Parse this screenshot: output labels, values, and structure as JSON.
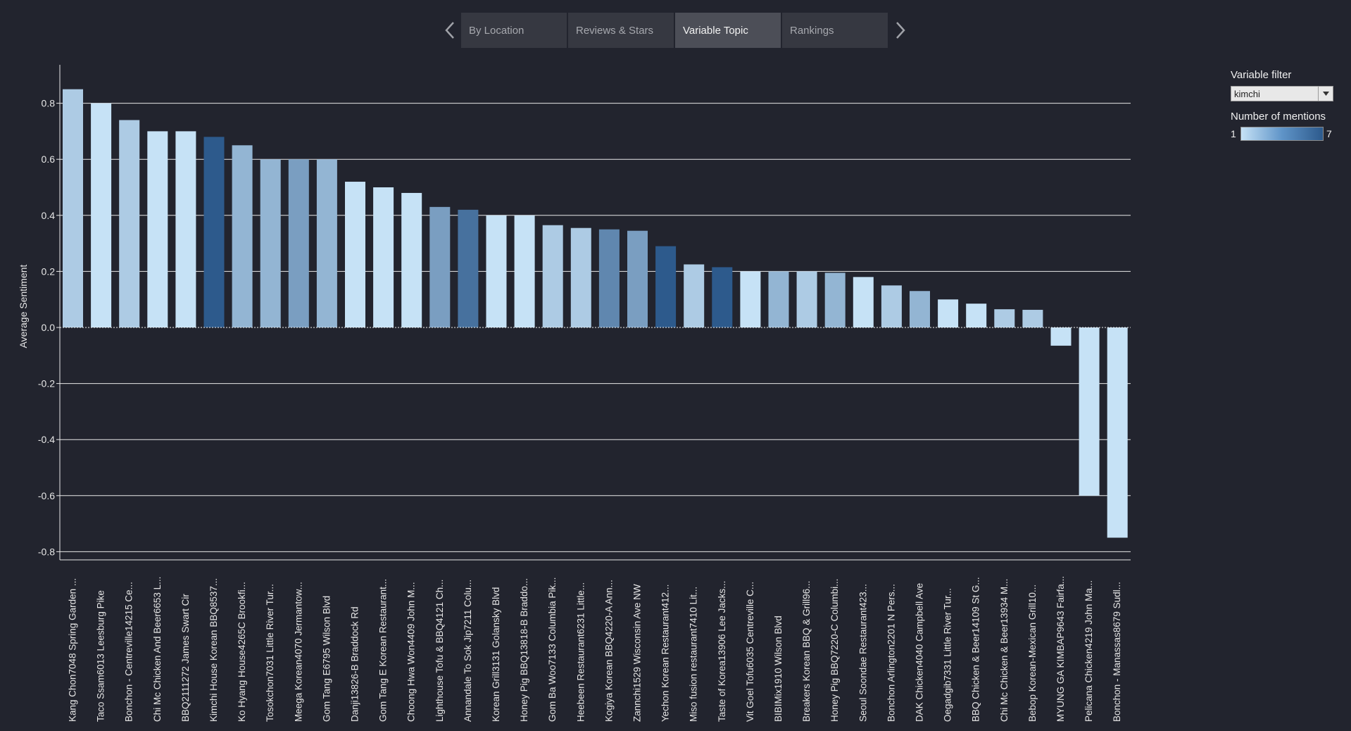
{
  "tabs": {
    "prev_label": "previous",
    "next_label": "next",
    "items": [
      {
        "label": "By Location",
        "active": false
      },
      {
        "label": "Reviews & Stars",
        "active": false
      },
      {
        "label": "Variable Topic",
        "active": true
      },
      {
        "label": "Rankings",
        "active": false
      }
    ]
  },
  "filters": {
    "variable_filter_label": "Variable filter",
    "variable_filter_value": "kimchi",
    "legend_title": "Number of mentions",
    "legend_min": "1",
    "legend_max": "7"
  },
  "colors": {
    "background": "#22242e",
    "gridline": "#e8e8e8",
    "scale_low": "#c6e2f6",
    "scale_high": "#2d5a8c"
  },
  "chart_data": {
    "type": "bar",
    "ylabel": "Average Sentiment",
    "ylim": [
      -0.85,
      0.9
    ],
    "yticks": [
      "0.8",
      "0.6",
      "0.4",
      "0.2",
      "0.0",
      "-0.2",
      "-0.4",
      "-0.6",
      "-0.8"
    ],
    "grid": true,
    "color_encoding": "Number of mentions",
    "categories": [
      "Kang Chon7048 Spring Garden ...",
      "Taco Ssam6013 Leesburg Pike",
      "Bonchon - Centreville14215 Ce...",
      "Chi Mc Chicken And Beer6653 L...",
      "BBQ2111272 James Swart Cir",
      "Kimchi House Korean BBQ8537...",
      "Ko Hyang House4265C Brookfi...",
      "Tosokchon7031 Little River Tur...",
      "Meega Korean4070 Jermantow...",
      "Gom Tang E6795 Wilson Blvd",
      "Danji13826-B Braddock Rd",
      "Gom Tang E Korean Restaurant...",
      "Choong Hwa Won4409 John M...",
      "Lighthouse Tofu & BBQ4121 Ch...",
      "Annandale To Sok Jip7211 Colu...",
      "Korean Grill3131 Golansky Blvd",
      "Honey Pig BBQ13818-B Braddo...",
      "Gom Ba Woo7133 Columbia Pik...",
      "Heebeen Restaurant6231 Little...",
      "Kogiya Korean BBQ4220-A Ann...",
      "Zannchi1529 Wisconsin Ave NW",
      "Yechon Korean Restaurant412...",
      "Miso fusion restaurant7410 Lit...",
      "Taste of Korea13906 Lee Jacks...",
      "Vit Goel Tofu6035 Centreville C...",
      "BIBIMix1910 Wilson Blvd",
      "Breakers Korean BBQ & Grill96...",
      "Honey Pig BBQ7220-C Columbi...",
      "Seoul Soondae Restaurant423...",
      "Bonchon Arlington2201 N Pers...",
      "DAK Chicken4040 Campbell Ave",
      "Oegadgib7331 Little River Tur...",
      "BBQ Chicken & Beer14109 St G...",
      "Chi Mc Chicken & Beer13934 M...",
      "Bebop Korean-Mexican Grill10...",
      "MYUNG GA KIMBAP9643 Fairfa...",
      "Pelicana Chicken4219 John Ma...",
      "Bonchon - Manassas8679 Sudl..."
    ],
    "values": [
      0.85,
      0.8,
      0.74,
      0.7,
      0.7,
      0.68,
      0.65,
      0.6,
      0.6,
      0.6,
      0.52,
      0.5,
      0.48,
      0.43,
      0.42,
      0.4,
      0.4,
      0.365,
      0.355,
      0.35,
      0.345,
      0.29,
      0.225,
      0.215,
      0.2,
      0.2,
      0.2,
      0.195,
      0.18,
      0.15,
      0.13,
      0.1,
      0.085,
      0.065,
      0.063,
      -0.065,
      -0.6,
      -0.75
    ],
    "mentions": [
      2,
      1,
      2,
      1,
      1,
      7,
      3,
      3,
      4,
      3,
      1,
      1,
      1,
      4,
      6,
      1,
      1,
      2,
      2,
      5,
      4,
      7,
      2,
      7,
      1,
      3,
      2,
      3,
      1,
      2,
      3,
      1,
      1,
      2,
      2,
      1,
      1,
      1
    ]
  }
}
